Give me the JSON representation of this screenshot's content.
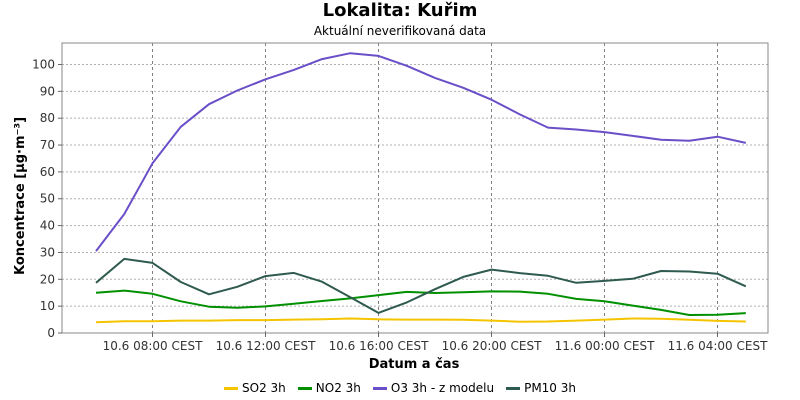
{
  "chart_data": {
    "type": "line",
    "title": "Lokalita: Kuřim",
    "subtitle": "Aktuální neverifikovaná data",
    "xlabel": "Datum a čas",
    "ylabel": "Koncentrace [µg·m⁻³]",
    "ylim": [
      0,
      108
    ],
    "yticks": [
      0,
      10,
      20,
      30,
      40,
      50,
      60,
      70,
      80,
      90,
      100
    ],
    "x": [
      "10.6 06:00",
      "10.6 07:00",
      "10.6 08:00",
      "10.6 09:00",
      "10.6 10:00",
      "10.6 11:00",
      "10.6 12:00",
      "10.6 13:00",
      "10.6 14:00",
      "10.6 15:00",
      "10.6 16:00",
      "10.6 17:00",
      "10.6 18:00",
      "10.6 19:00",
      "10.6 20:00",
      "10.6 21:00",
      "10.6 22:00",
      "10.6 23:00",
      "11.6 00:00",
      "11.6 01:00",
      "11.6 02:00",
      "11.6 03:00",
      "11.6 04:00",
      "11.6 05:00"
    ],
    "xticks": [
      {
        "index": 2,
        "label": "10.6 08:00 CEST"
      },
      {
        "index": 6,
        "label": "10.6 12:00 CEST"
      },
      {
        "index": 10,
        "label": "10.6 16:00 CEST"
      },
      {
        "index": 14,
        "label": "10.6 20:00 CEST"
      },
      {
        "index": 18,
        "label": "11.6 00:00 CEST"
      },
      {
        "index": 22,
        "label": "11.6 04:00 CEST"
      }
    ],
    "grid": true,
    "legend_position": "bottom",
    "series": [
      {
        "name": "SO2 3h",
        "color": "#f5c400",
        "values": [
          4.0,
          4.4,
          4.4,
          4.6,
          4.6,
          4.8,
          4.8,
          5.0,
          5.1,
          5.4,
          5.1,
          5.0,
          5.0,
          4.9,
          4.6,
          4.2,
          4.3,
          4.6,
          5.0,
          5.4,
          5.3,
          4.9,
          4.5,
          4.3
        ]
      },
      {
        "name": "NO2 3h",
        "color": "#009000",
        "values": [
          15.0,
          15.8,
          14.6,
          11.8,
          9.8,
          9.4,
          9.9,
          10.9,
          11.9,
          12.9,
          14.1,
          15.3,
          14.9,
          15.2,
          15.5,
          15.4,
          14.6,
          12.7,
          11.8,
          10.2,
          8.6,
          6.7,
          6.8,
          7.4
        ]
      },
      {
        "name": "O3 3h - z modelu",
        "color": "#6a4fc8",
        "values": [
          30.5,
          44.3,
          63.2,
          76.8,
          85.2,
          90.3,
          94.5,
          98.0,
          102.0,
          104.2,
          103.2,
          99.5,
          95.0,
          91.3,
          86.9,
          81.4,
          76.5,
          75.8,
          74.8,
          73.4,
          72.0,
          71.6,
          73.1,
          70.8
        ]
      },
      {
        "name": "PM10 3h",
        "color": "#2f5a4f",
        "values": [
          18.7,
          27.6,
          26.1,
          19.0,
          14.4,
          17.2,
          21.2,
          22.4,
          19.1,
          13.3,
          7.5,
          11.4,
          16.3,
          20.9,
          23.6,
          22.3,
          21.3,
          18.7,
          19.4,
          20.2,
          23.1,
          22.9,
          22.1,
          17.4
        ]
      }
    ]
  }
}
